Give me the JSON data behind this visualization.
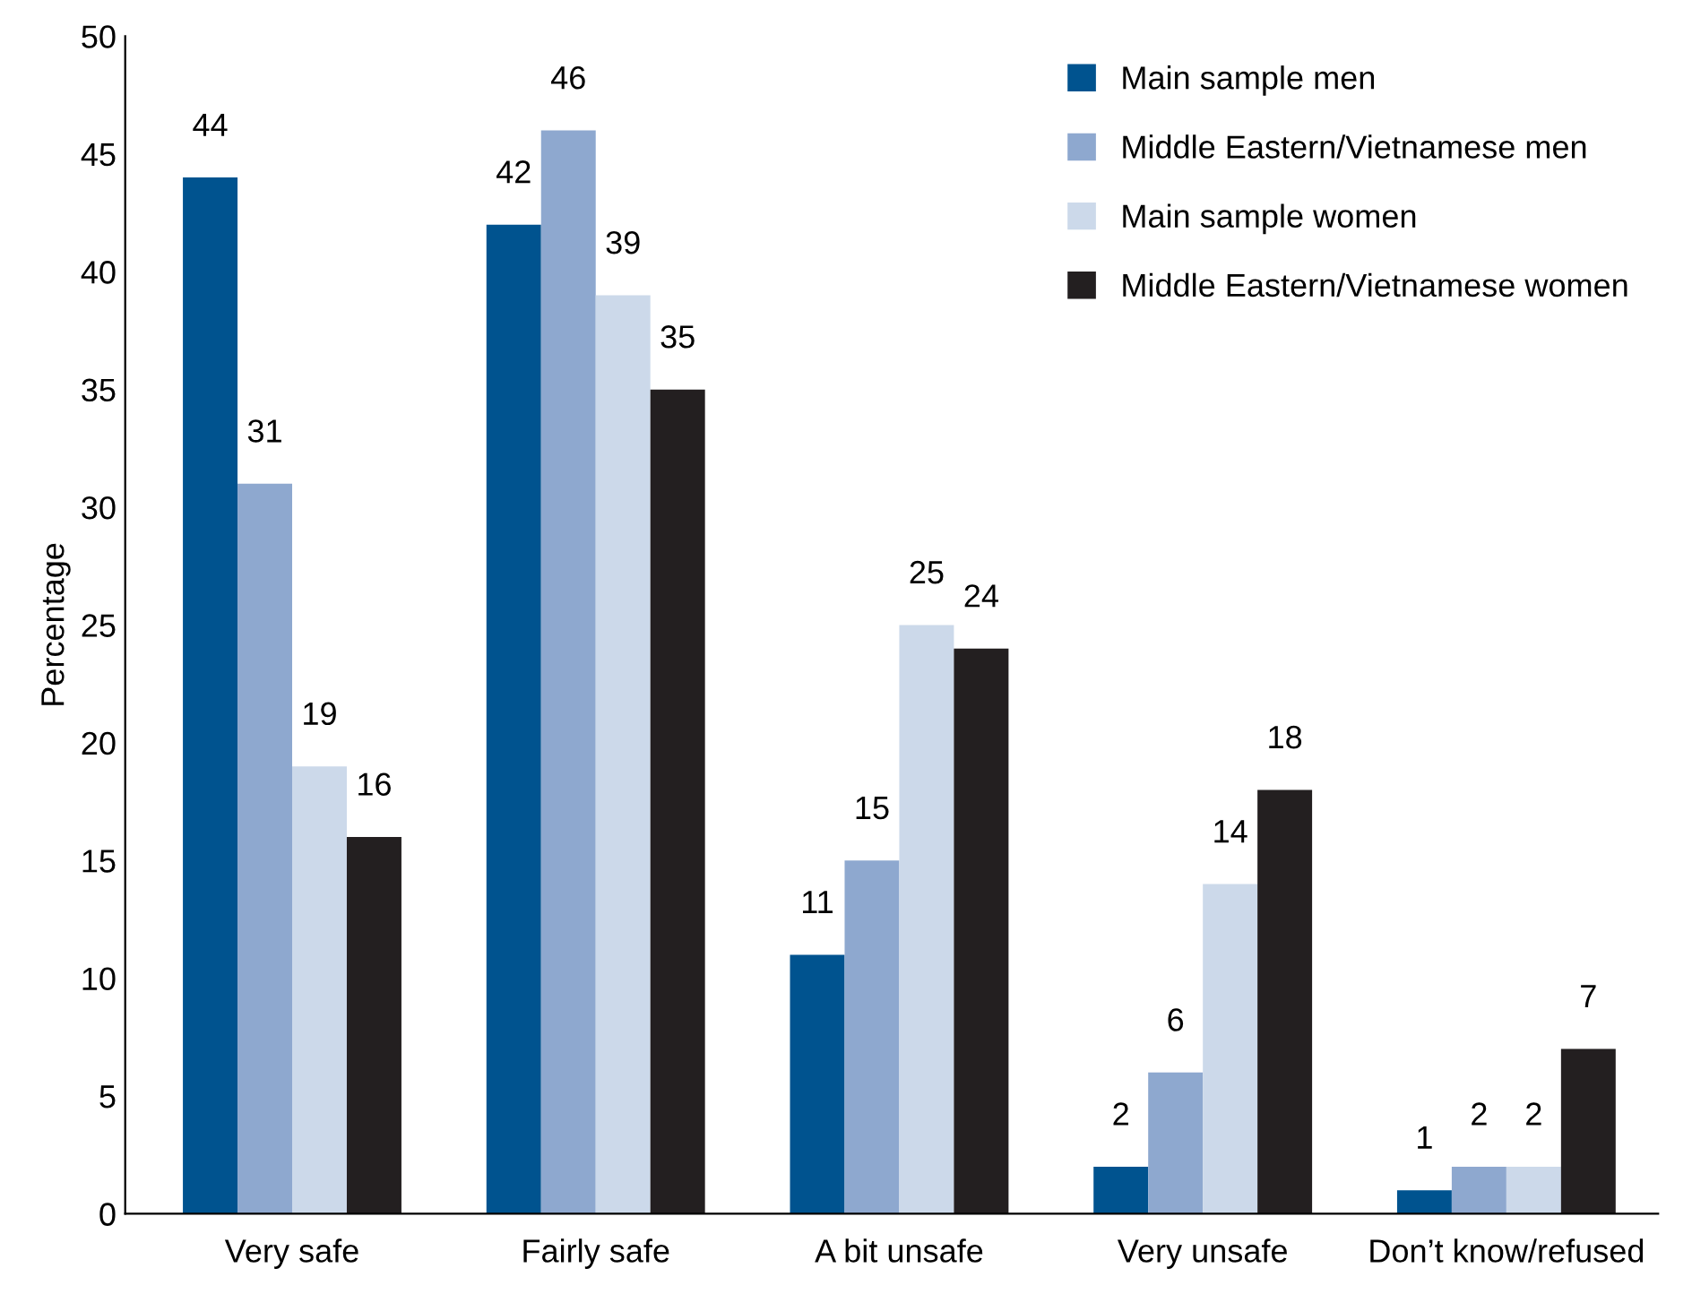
{
  "chart_data": {
    "type": "bar",
    "ylabel": "Percentage",
    "categories": [
      "Very safe",
      "Fairly safe",
      "A bit unsafe",
      "Very unsafe",
      "Don’t know/refused"
    ],
    "series": [
      {
        "name": "Main sample men",
        "color": "#00538f",
        "values": [
          44,
          42,
          11,
          2,
          1
        ]
      },
      {
        "name": "Middle Eastern/Vietnamese men",
        "color": "#8ea8cf",
        "values": [
          31,
          46,
          15,
          6,
          2
        ]
      },
      {
        "name": "Main sample women",
        "color": "#ccd9ea",
        "values": [
          19,
          39,
          25,
          14,
          2
        ]
      },
      {
        "name": "Middle Eastern/Vietnamese women",
        "color": "#231f20",
        "values": [
          16,
          35,
          24,
          18,
          7
        ]
      }
    ],
    "ylim": [
      0,
      50
    ],
    "yticks": [
      0,
      5,
      10,
      15,
      20,
      25,
      30,
      35,
      40,
      45,
      50
    ],
    "data_labels": true,
    "legend": "top right",
    "grid": false
  }
}
